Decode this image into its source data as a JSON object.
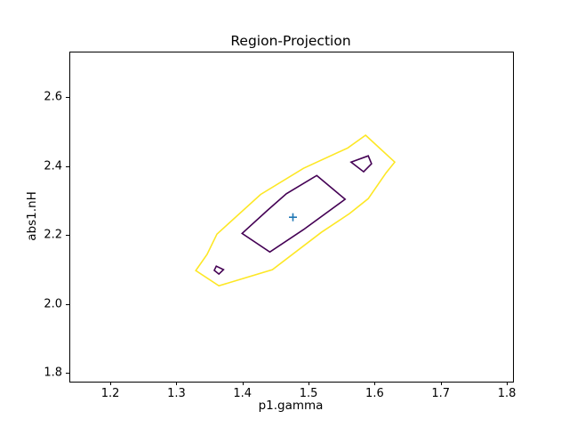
{
  "title": "Region-Projection",
  "colors": {
    "background": "#ffffff",
    "text": "#000000",
    "spine": "#000000",
    "outer_contour": "#fde725",
    "inner_contour": "#440154",
    "marker": "#1f77b4"
  },
  "chart_data": {
    "type": "contour",
    "title": "Region-Projection",
    "xlabel": "p1.gamma",
    "ylabel": "abs1.nH",
    "xlim": [
      1.138,
      1.808
    ],
    "ylim": [
      1.777,
      2.732
    ],
    "xticks": [
      1.2,
      1.3,
      1.4,
      1.5,
      1.6,
      1.7,
      1.8
    ],
    "xtick_labels": [
      "1.2",
      "1.3",
      "1.4",
      "1.5",
      "1.6",
      "1.7",
      "1.8"
    ],
    "yticks": [
      1.8,
      2.0,
      2.2,
      2.4,
      2.6
    ],
    "ytick_labels": [
      "1.8",
      "2.0",
      "2.2",
      "2.4",
      "2.6"
    ],
    "grid": false,
    "legend": false,
    "best_fit_point": {
      "x": 1.475,
      "y": 2.254,
      "marker": "+",
      "color": "#1f77b4"
    },
    "contours": [
      {
        "name": "outer",
        "color": "#fde725",
        "points": [
          [
            1.585,
            2.492
          ],
          [
            1.629,
            2.414
          ],
          [
            1.616,
            2.383
          ],
          [
            1.589,
            2.308
          ],
          [
            1.561,
            2.265
          ],
          [
            1.518,
            2.21
          ],
          [
            1.444,
            2.102
          ],
          [
            1.363,
            2.055
          ],
          [
            1.328,
            2.099
          ],
          [
            1.345,
            2.146
          ],
          [
            1.36,
            2.205
          ],
          [
            1.426,
            2.32
          ],
          [
            1.491,
            2.396
          ],
          [
            1.558,
            2.455
          ]
        ]
      },
      {
        "name": "inner-main",
        "color": "#440154",
        "points": [
          [
            1.511,
            2.375
          ],
          [
            1.554,
            2.306
          ],
          [
            1.491,
            2.218
          ],
          [
            1.44,
            2.153
          ],
          [
            1.398,
            2.207
          ],
          [
            1.437,
            2.275
          ],
          [
            1.465,
            2.322
          ]
        ]
      },
      {
        "name": "inner-islet-upper",
        "color": "#440154",
        "points": [
          [
            1.563,
            2.414
          ],
          [
            1.589,
            2.432
          ],
          [
            1.594,
            2.409
          ],
          [
            1.582,
            2.386
          ]
        ]
      },
      {
        "name": "inner-islet-lower",
        "color": "#440154",
        "points": [
          [
            1.359,
            2.112
          ],
          [
            1.37,
            2.102
          ],
          [
            1.363,
            2.089
          ],
          [
            1.356,
            2.1
          ]
        ]
      }
    ]
  }
}
